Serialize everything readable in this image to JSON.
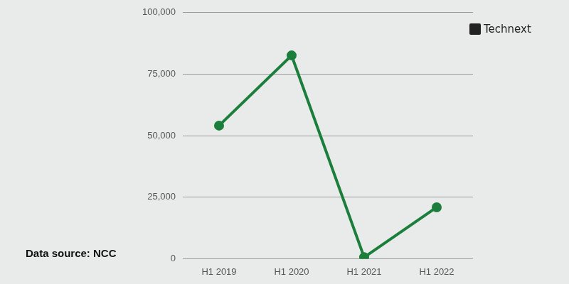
{
  "chart_data": {
    "type": "line",
    "annotations": [
      "Data source: NCC",
      "Technext"
    ],
    "categories": [
      "H1 2019",
      "H1 2020",
      "H1 2021",
      "H1 2022"
    ],
    "values": [
      54100,
      82600,
      600,
      20900
    ],
    "color": "#1b7f3b",
    "marker": "circle",
    "ylim": [
      0,
      100000
    ],
    "yticks": [
      {
        "value": 0,
        "label": "0"
      },
      {
        "value": 25000,
        "label": "25,000"
      },
      {
        "value": 50000,
        "label": "50,000"
      },
      {
        "value": 75000,
        "label": "75,000"
      },
      {
        "value": 100000,
        "label": "100,000"
      }
    ],
    "grid": true
  }
}
